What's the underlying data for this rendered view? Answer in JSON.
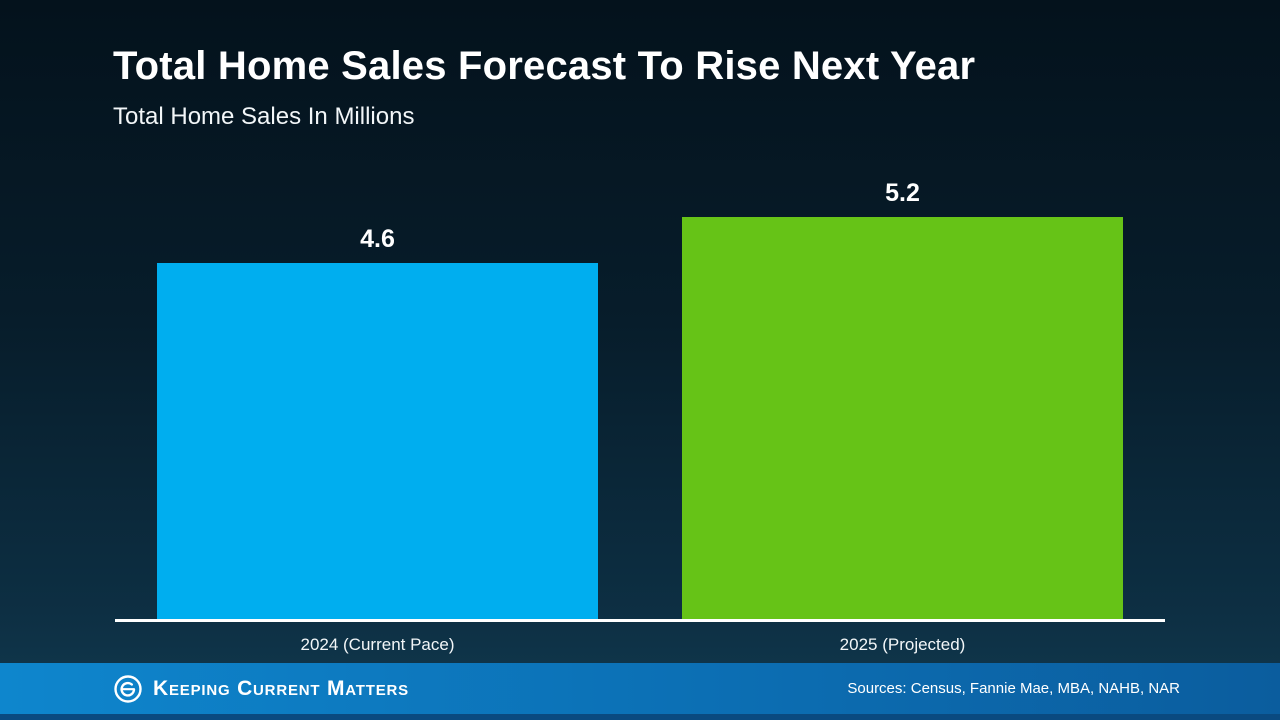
{
  "page": {
    "title": "Total Home Sales Forecast To Rise Next Year",
    "subtitle": "Total Home Sales In Millions"
  },
  "chart_data": {
    "type": "bar",
    "title": "Total Home Sales Forecast To Rise Next Year",
    "subtitle": "Total Home Sales In Millions",
    "categories": [
      "2024 (Current Pace)",
      "2025 (Projected)"
    ],
    "values": [
      4.6,
      5.2
    ],
    "value_labels": [
      "4.6",
      "5.2"
    ],
    "xlabel": "",
    "ylabel": "Total Home Sales In Millions",
    "ylim": [
      0,
      5.2
    ],
    "grid": false,
    "legend": "none",
    "bar_colors": [
      "#00AEEF",
      "#66C317"
    ],
    "axis_line_color": "#ffffff"
  },
  "footer": {
    "brand": "Keeping Current Matters",
    "logo_icon": "kcm-spiral-e",
    "sources": "Sources: Census, Fannie Mae, MBA, NAHB, NAR",
    "background_left": "#0e86cd",
    "background_right": "#0b5d9e"
  }
}
